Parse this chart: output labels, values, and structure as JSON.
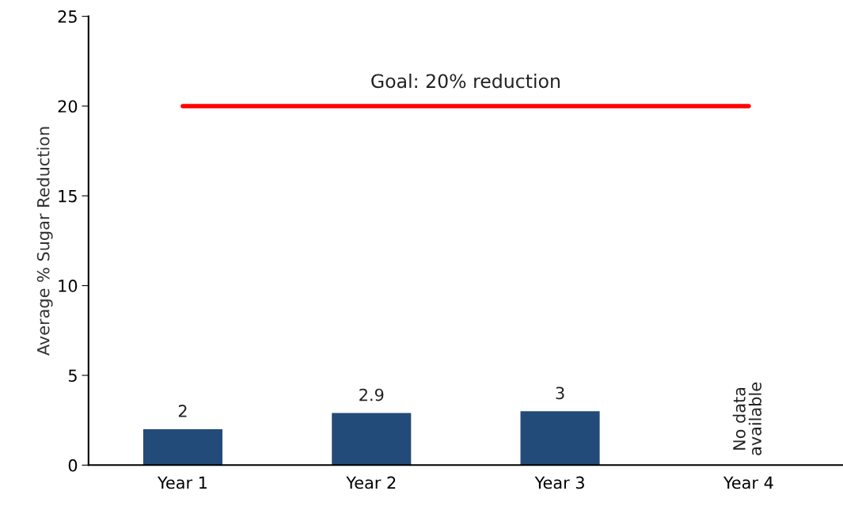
{
  "chart_data": {
    "type": "bar",
    "ylabel": "Average % Sugar Reduction",
    "categories": [
      "Year 1",
      "Year 2",
      "Year 3",
      "Year 4"
    ],
    "values": [
      2,
      2.9,
      3,
      null
    ],
    "color": "#234b79",
    "ylim": [
      0,
      25
    ],
    "yticks": [
      0,
      5,
      10,
      15,
      20,
      25
    ],
    "grid": false,
    "data_labels": true,
    "ref_lines": [
      {
        "axis": "y",
        "value": 20,
        "label": "Goal: 20% reduction",
        "color": "#ff0000"
      }
    ],
    "annotations": [
      "No data\navailable"
    ]
  }
}
